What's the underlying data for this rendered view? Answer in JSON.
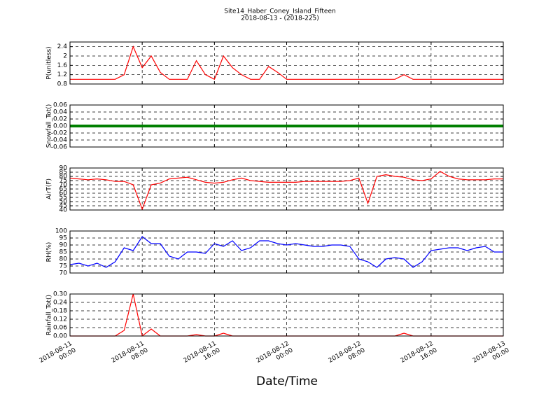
{
  "chart_data": {
    "type": "line",
    "title": "Site14_Haber_Coney_Island_Fifteen",
    "subtitle": "2018-08-13 - (2018-225)",
    "xlabel": "Date/Time",
    "x": [
      "2018-08-11 00:00",
      "2018-08-11 01:00",
      "2018-08-11 02:00",
      "2018-08-11 03:00",
      "2018-08-11 04:00",
      "2018-08-11 05:00",
      "2018-08-11 06:00",
      "2018-08-11 07:00",
      "2018-08-11 08:00",
      "2018-08-11 09:00",
      "2018-08-11 10:00",
      "2018-08-11 11:00",
      "2018-08-11 12:00",
      "2018-08-11 13:00",
      "2018-08-11 14:00",
      "2018-08-11 15:00",
      "2018-08-11 16:00",
      "2018-08-11 17:00",
      "2018-08-11 18:00",
      "2018-08-11 19:00",
      "2018-08-11 20:00",
      "2018-08-11 21:00",
      "2018-08-11 22:00",
      "2018-08-11 23:00",
      "2018-08-12 00:00",
      "2018-08-12 01:00",
      "2018-08-12 02:00",
      "2018-08-12 03:00",
      "2018-08-12 04:00",
      "2018-08-12 05:00",
      "2018-08-12 06:00",
      "2018-08-12 07:00",
      "2018-08-12 08:00",
      "2018-08-12 09:00",
      "2018-08-12 10:00",
      "2018-08-12 11:00",
      "2018-08-12 12:00",
      "2018-08-12 13:00",
      "2018-08-12 14:00",
      "2018-08-12 15:00",
      "2018-08-12 16:00",
      "2018-08-12 17:00",
      "2018-08-12 18:00",
      "2018-08-12 19:00",
      "2018-08-12 20:00",
      "2018-08-12 21:00",
      "2018-08-12 22:00",
      "2018-08-12 23:00",
      "2018-08-13 00:00"
    ],
    "xlim": [
      "2018-08-11 00:00",
      "2018-08-13 00:00"
    ],
    "xticks": [
      "2018-08-11 00:00",
      "2018-08-11 08:00",
      "2018-08-11 16:00",
      "2018-08-12 00:00",
      "2018-08-12 08:00",
      "2018-08-12 16:00",
      "2018-08-13 00:00"
    ],
    "grid": true,
    "panels": [
      {
        "ylabel": "P(unitless)",
        "ylim": [
          0.8,
          2.6
        ],
        "yticks": [
          0.8,
          1.2,
          1.6,
          2.0,
          2.4
        ],
        "series": [
          {
            "color": "#ff0000",
            "values": [
              1.0,
              1.0,
              1.0,
              1.0,
              1.0,
              1.0,
              1.2,
              2.4,
              1.5,
              2.0,
              1.3,
              1.0,
              1.0,
              1.0,
              1.8,
              1.2,
              1.0,
              2.0,
              1.5,
              1.2,
              1.0,
              1.0,
              1.55,
              1.3,
              1.0,
              1.0,
              1.0,
              1.0,
              1.0,
              1.0,
              1.0,
              1.0,
              1.0,
              1.0,
              1.0,
              1.0,
              1.0,
              1.2,
              1.0,
              1.0,
              1.0,
              1.0,
              1.0,
              1.0,
              1.0,
              1.0,
              1.0,
              1.0,
              1.0
            ]
          }
        ]
      },
      {
        "ylabel": "Snowfall_Tot()",
        "ylim": [
          -0.06,
          0.06
        ],
        "yticks": [
          -0.06,
          -0.04,
          -0.02,
          {
            "value": 0,
            "label": "0.00"
          },
          0.02,
          0.04,
          0.06
        ],
        "series": [
          {
            "color": "#008000",
            "values": [
              0,
              0,
              0,
              0,
              0,
              0,
              0,
              0,
              0,
              0,
              0,
              0,
              0,
              0,
              0,
              0,
              0,
              0,
              0,
              0,
              0,
              0,
              0,
              0,
              0,
              0,
              0,
              0,
              0,
              0,
              0,
              0,
              0,
              0,
              0,
              0,
              0,
              0,
              0,
              0,
              0,
              0,
              0,
              0,
              0,
              0,
              0,
              0,
              0
            ]
          }
        ]
      },
      {
        "ylabel": "AirT(F)",
        "ylim": [
          40,
          90
        ],
        "yticks": [
          40,
          45,
          50,
          55,
          60,
          65,
          70,
          75,
          80,
          85,
          90
        ],
        "series": [
          {
            "color": "#ff0000",
            "values": [
              78,
              77,
              76,
              77,
              76,
              74,
              74,
              70,
              41,
              70,
              72,
              77,
              78,
              79,
              76,
              73,
              72,
              73,
              76,
              78,
              75,
              74,
              73,
              73,
              73,
              73,
              74,
              74,
              74,
              74,
              74,
              75,
              78,
              48,
              80,
              82,
              80,
              79,
              76,
              75,
              77,
              86,
              80,
              77,
              76,
              76,
              76,
              77,
              77
            ]
          }
        ]
      },
      {
        "ylabel": "RH(%)",
        "ylim": [
          70,
          100
        ],
        "yticks": [
          70,
          75,
          80,
          85,
          90,
          95,
          100
        ],
        "series": [
          {
            "color": "#0000ff",
            "values": [
              76,
              77,
              75,
              77,
              74,
              78,
              88,
              86,
              96,
              91,
              91,
              82,
              80,
              85,
              85,
              84,
              91,
              89,
              93,
              86,
              88,
              93,
              93,
              91,
              90,
              91,
              90,
              89,
              89,
              90,
              90,
              89,
              80,
              78,
              74,
              80,
              81,
              80,
              74,
              78,
              86,
              87,
              88,
              88,
              86,
              88,
              89,
              85,
              85
            ]
          }
        ]
      },
      {
        "ylabel": "Rainfall_Tot()",
        "ylim": [
          0,
          0.3
        ],
        "yticks": [
          {
            "value": 0,
            "label": "0.00"
          },
          0.06,
          0.12,
          0.18,
          0.24,
          {
            "value": 0.3,
            "label": "0.30"
          }
        ],
        "series": [
          {
            "color": "#ff0000",
            "values": [
              0,
              0,
              0,
              0,
              0,
              0,
              0.04,
              0.3,
              0,
              0.05,
              0,
              0,
              0,
              0,
              0.01,
              0,
              0,
              0.02,
              0,
              0,
              0,
              0,
              0,
              0,
              0,
              0,
              0,
              0,
              0,
              0,
              0,
              0,
              0,
              0,
              0,
              0,
              0,
              0.02,
              0,
              0,
              0,
              0,
              0,
              0,
              0,
              0,
              0,
              0,
              0
            ]
          }
        ]
      }
    ]
  }
}
